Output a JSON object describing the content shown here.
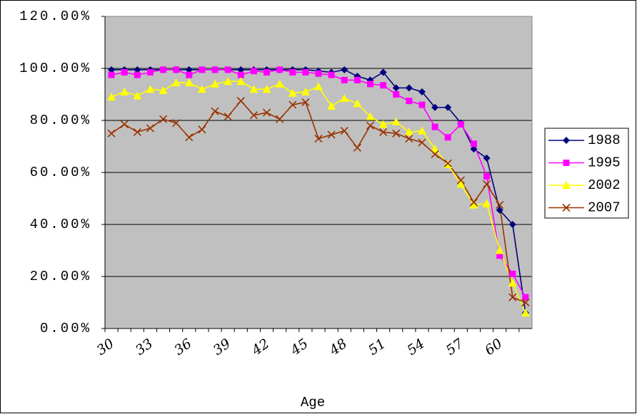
{
  "chart_data": {
    "type": "line",
    "x_label": "Age",
    "categories": [
      30,
      null,
      null,
      33,
      null,
      null,
      36,
      null,
      null,
      39,
      null,
      null,
      42,
      null,
      null,
      45,
      null,
      null,
      48,
      null,
      null,
      51,
      null,
      null,
      54,
      null,
      null,
      57,
      null,
      null,
      60,
      null,
      null
    ],
    "series": [
      {
        "name": "1988",
        "color": "#000080",
        "marker": "diamond",
        "values": [
          99.5,
          99.5,
          99.5,
          99.5,
          99.5,
          99.5,
          99.5,
          99.5,
          99.5,
          99.5,
          99.5,
          99.5,
          99.5,
          99.5,
          99.5,
          99.5,
          99,
          98.5,
          99.5,
          97,
          95.5,
          98.5,
          92.5,
          92.5,
          91,
          85,
          85,
          79,
          69,
          65.5,
          45.5,
          40,
          6
        ]
      },
      {
        "name": "1995",
        "color": "#ff00ff",
        "marker": "square",
        "values": [
          97.5,
          98.5,
          97.5,
          98.5,
          99.5,
          99.5,
          97.5,
          99.5,
          99.5,
          99.5,
          97.5,
          99,
          98.5,
          99.5,
          98.5,
          98.5,
          98,
          97.5,
          95.5,
          95.5,
          94,
          93.5,
          90,
          87.5,
          86,
          77.5,
          73.5,
          78.5,
          71,
          58.5,
          28,
          21,
          12
        ]
      },
      {
        "name": "2002",
        "color": "#ffff00",
        "marker": "triangle",
        "values": [
          89,
          91,
          89.5,
          92,
          91.5,
          94.5,
          94.5,
          92,
          94,
          95,
          95,
          92,
          92,
          94,
          90.5,
          91,
          93,
          85.5,
          88.5,
          86.5,
          81.5,
          78.5,
          79.5,
          75.5,
          76,
          69,
          63,
          55.5,
          47.5,
          48,
          30,
          17.5,
          6
        ]
      },
      {
        "name": "2007",
        "color": "#993300",
        "marker": "x",
        "values": [
          75,
          78.5,
          75.5,
          77,
          80.5,
          79,
          73.5,
          76.5,
          83.5,
          81.5,
          87.5,
          82,
          83,
          80.5,
          86,
          87,
          73,
          74.5,
          76,
          69.5,
          78,
          75.5,
          75,
          73,
          71.5,
          67,
          63.5,
          57,
          48.5,
          55.5,
          47.5,
          12,
          10
        ]
      }
    ],
    "ylim": [
      0,
      120
    ],
    "yticks": [
      {
        "value": 0,
        "label": "0.00%"
      },
      {
        "value": 20,
        "label": "20.00%"
      },
      {
        "value": 40,
        "label": "40.00%"
      },
      {
        "value": 60,
        "label": "60.00%"
      },
      {
        "value": 80,
        "label": "80.00%"
      },
      {
        "value": 100,
        "label": "100.00%"
      },
      {
        "value": 120,
        "label": "120.00%"
      }
    ],
    "grid": true,
    "legend": "right"
  }
}
